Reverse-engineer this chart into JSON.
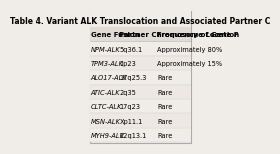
{
  "title": "Table 4. Variant ALK Translocation and Associated Partner C",
  "headers": [
    "Gene Fusion",
    "Partner Chromosome Location",
    "Frequency of Gene F"
  ],
  "rows": [
    [
      "NPM-ALK",
      "5q36.1",
      "Approximately 80%"
    ],
    [
      "TPM3-ALK",
      "1p23",
      "Approximately 15%"
    ],
    [
      "ALO17-ALK",
      "17q25.3",
      "Rare"
    ],
    [
      "ATIC-ALK",
      "2q35",
      "Rare"
    ],
    [
      "CLTC-ALK",
      "17q23",
      "Rare"
    ],
    [
      "MSN-ALK",
      "Xp11.1",
      "Rare"
    ],
    [
      "MYH9-ALK",
      "22q13.1",
      "Rare"
    ]
  ],
  "bg_color": "#f0ece8",
  "header_row_bg": "#d0c8c0",
  "title_bg": "#d0c8c0",
  "border_color": "#ffffff",
  "text_color": "#000000",
  "title_fontsize": 5.5,
  "header_fontsize": 5.0,
  "cell_fontsize": 4.8
}
